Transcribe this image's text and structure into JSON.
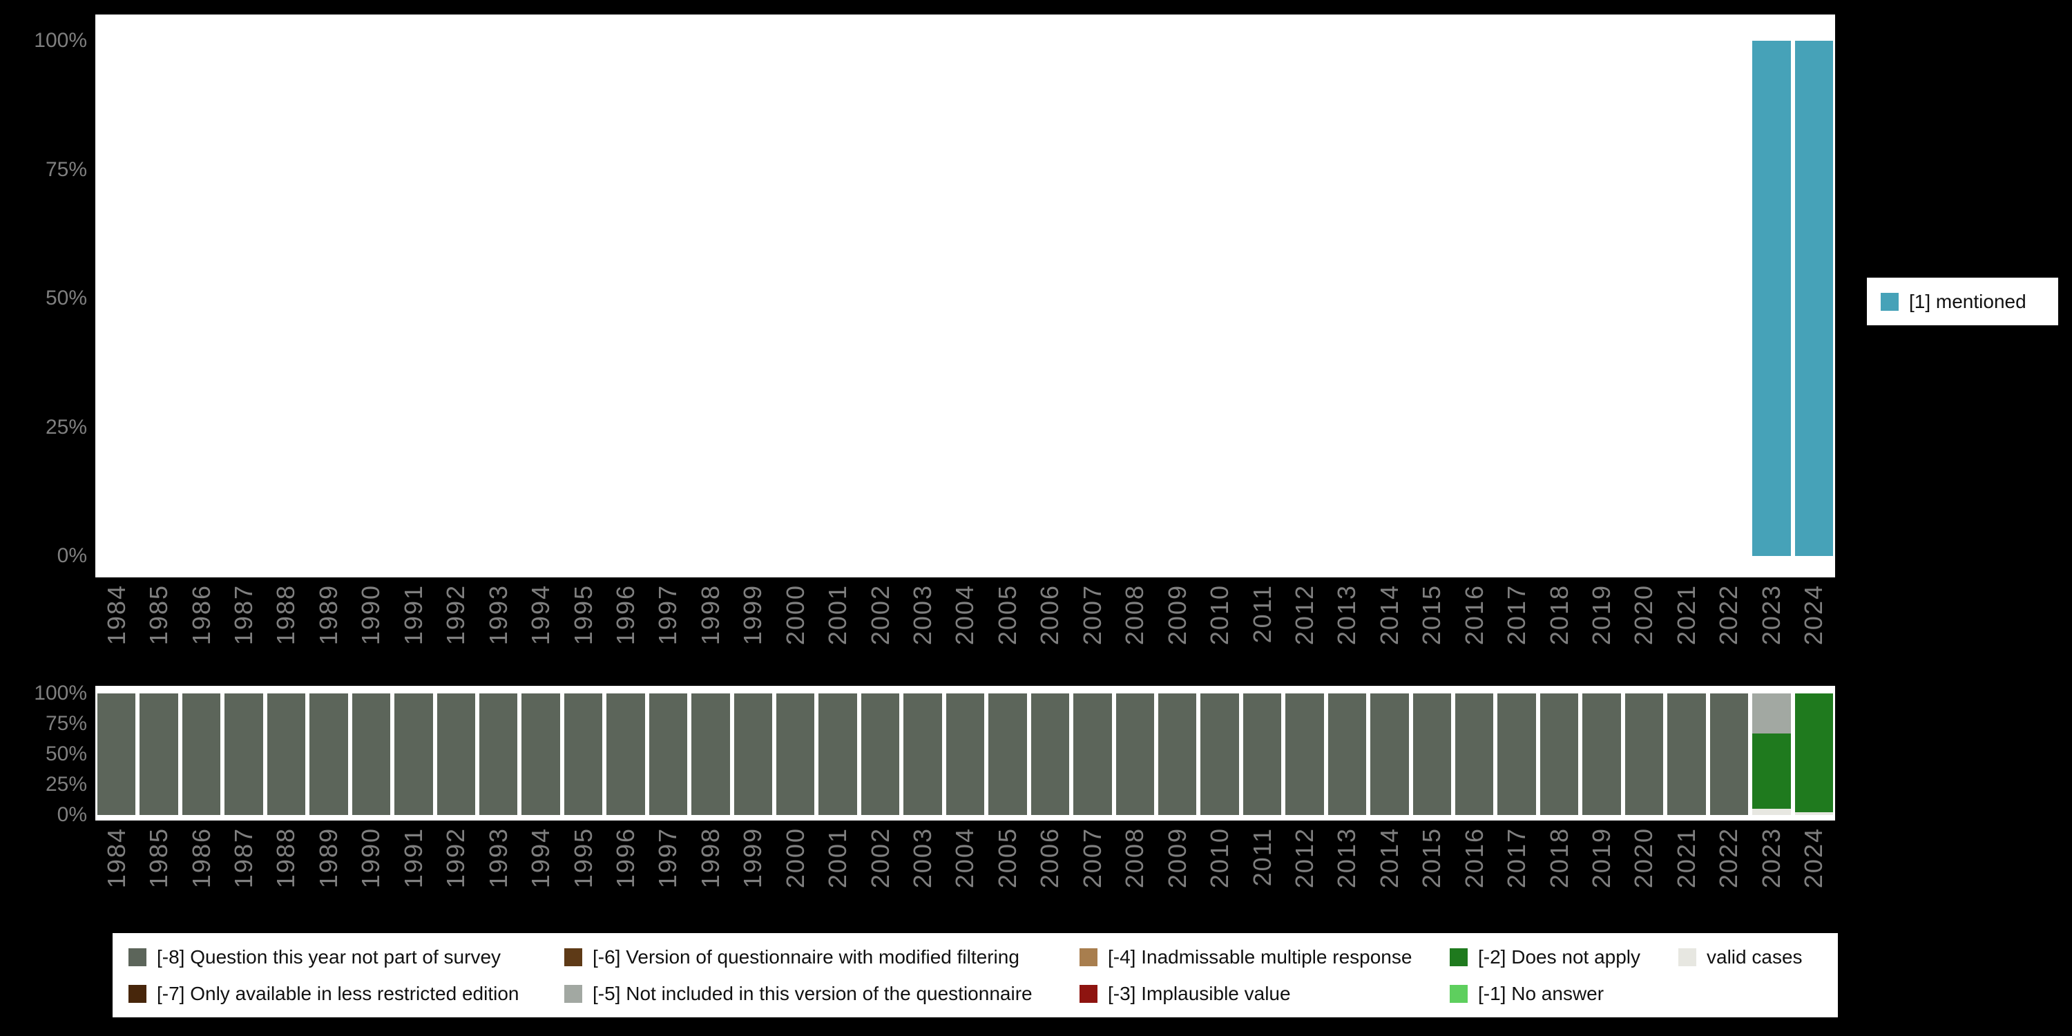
{
  "colors": {
    "background": "#000000",
    "plot_background": "#ffffff",
    "axis_text": "#7f7f7f",
    "legend_background": "#ffffff",
    "legend_text": "#111111"
  },
  "chart_data": [
    {
      "type": "bar",
      "stacked": true,
      "title": "",
      "xlabel": "",
      "ylabel": "",
      "grid": false,
      "ylim": [
        0,
        100
      ],
      "y_ticks": [
        "100%",
        "75%",
        "50%",
        "25%",
        "0%"
      ],
      "legend_position": "right",
      "categories": [
        "1984",
        "1985",
        "1986",
        "1987",
        "1988",
        "1989",
        "1990",
        "1991",
        "1992",
        "1993",
        "1994",
        "1995",
        "1996",
        "1997",
        "1998",
        "1999",
        "2000",
        "2001",
        "2002",
        "2003",
        "2004",
        "2005",
        "2006",
        "2007",
        "2008",
        "2009",
        "2010",
        "2011",
        "2012",
        "2013",
        "2014",
        "2015",
        "2016",
        "2017",
        "2018",
        "2019",
        "2020",
        "2021",
        "2022",
        "2023",
        "2024"
      ],
      "series": [
        {
          "name": "[1] mentioned",
          "color": "#46a2b8",
          "values": [
            0,
            0,
            0,
            0,
            0,
            0,
            0,
            0,
            0,
            0,
            0,
            0,
            0,
            0,
            0,
            0,
            0,
            0,
            0,
            0,
            0,
            0,
            0,
            0,
            0,
            0,
            0,
            0,
            0,
            0,
            0,
            0,
            0,
            0,
            0,
            0,
            0,
            0,
            0,
            100,
            100
          ]
        }
      ],
      "legend": [
        {
          "name": "[1] mentioned",
          "color": "#46a2b8"
        }
      ]
    },
    {
      "type": "bar",
      "stacked": true,
      "title": "",
      "xlabel": "",
      "ylabel": "",
      "grid": false,
      "ylim": [
        0,
        100
      ],
      "y_ticks": [
        "100%",
        "75%",
        "50%",
        "25%",
        "0%"
      ],
      "legend_position": "bottom",
      "categories": [
        "1984",
        "1985",
        "1986",
        "1987",
        "1988",
        "1989",
        "1990",
        "1991",
        "1992",
        "1993",
        "1994",
        "1995",
        "1996",
        "1997",
        "1998",
        "1999",
        "2000",
        "2001",
        "2002",
        "2003",
        "2004",
        "2005",
        "2006",
        "2007",
        "2008",
        "2009",
        "2010",
        "2011",
        "2012",
        "2013",
        "2014",
        "2015",
        "2016",
        "2017",
        "2018",
        "2019",
        "2020",
        "2021",
        "2022",
        "2023",
        "2024"
      ],
      "series": [
        {
          "name": "[-8] Question this year not part of survey",
          "color": "#5c655a",
          "values": [
            100,
            100,
            100,
            100,
            100,
            100,
            100,
            100,
            100,
            100,
            100,
            100,
            100,
            100,
            100,
            100,
            100,
            100,
            100,
            100,
            100,
            100,
            100,
            100,
            100,
            100,
            100,
            100,
            100,
            100,
            100,
            100,
            100,
            100,
            100,
            100,
            100,
            100,
            100,
            0,
            0
          ]
        },
        {
          "name": "[-5] Not included in this version of the questionnaire",
          "color": "#a2a8a2",
          "values": [
            0,
            0,
            0,
            0,
            0,
            0,
            0,
            0,
            0,
            0,
            0,
            0,
            0,
            0,
            0,
            0,
            0,
            0,
            0,
            0,
            0,
            0,
            0,
            0,
            0,
            0,
            0,
            0,
            0,
            0,
            0,
            0,
            0,
            0,
            0,
            0,
            0,
            0,
            0,
            33,
            0
          ]
        },
        {
          "name": "[-2] Does not apply",
          "color": "#1f7a1e",
          "values": [
            0,
            0,
            0,
            0,
            0,
            0,
            0,
            0,
            0,
            0,
            0,
            0,
            0,
            0,
            0,
            0,
            0,
            0,
            0,
            0,
            0,
            0,
            0,
            0,
            0,
            0,
            0,
            0,
            0,
            0,
            0,
            0,
            0,
            0,
            0,
            0,
            0,
            0,
            0,
            62,
            98
          ]
        },
        {
          "name": "valid cases",
          "color": "#e7e7e1",
          "values": [
            0,
            0,
            0,
            0,
            0,
            0,
            0,
            0,
            0,
            0,
            0,
            0,
            0,
            0,
            0,
            0,
            0,
            0,
            0,
            0,
            0,
            0,
            0,
            0,
            0,
            0,
            0,
            0,
            0,
            0,
            0,
            0,
            0,
            0,
            0,
            0,
            0,
            0,
            0,
            5,
            2
          ]
        }
      ],
      "legend": [
        {
          "name": "[-8] Question this year not part of survey",
          "color": "#5c655a"
        },
        {
          "name": "[-6] Version of questionnaire with modified filtering",
          "color": "#5e3a17"
        },
        {
          "name": "[-4] Inadmissable multiple response",
          "color": "#a87e4e"
        },
        {
          "name": "[-2] Does not apply",
          "color": "#1f7a1e"
        },
        {
          "name": "valid cases",
          "color": "#e7e7e1"
        },
        {
          "name": "[-7] Only available in less restricted edition",
          "color": "#47260b"
        },
        {
          "name": "[-5] Not included in this version of the questionnaire",
          "color": "#a2a8a2"
        },
        {
          "name": "[-3] Implausible value",
          "color": "#8e1410"
        },
        {
          "name": "[-1] No answer",
          "color": "#5ecf5e"
        }
      ]
    }
  ]
}
